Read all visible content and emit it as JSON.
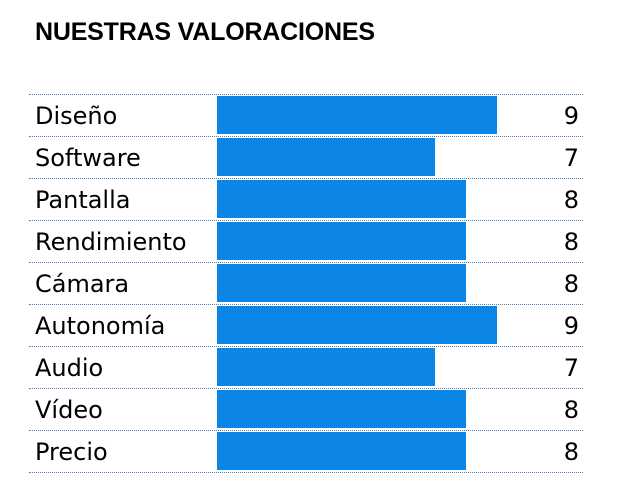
{
  "title": "NUESTRAS VALORACIONES",
  "bar_color": "#0c86e6",
  "scale_max": 10,
  "ratings": [
    {
      "label": "Diseño",
      "value": 9
    },
    {
      "label": "Software",
      "value": 7
    },
    {
      "label": "Pantalla",
      "value": 8
    },
    {
      "label": "Rendimiento",
      "value": 8
    },
    {
      "label": "Cámara",
      "value": 8
    },
    {
      "label": "Autonomía",
      "value": 9
    },
    {
      "label": "Audio",
      "value": 7
    },
    {
      "label": "Vídeo",
      "value": 8
    },
    {
      "label": "Precio",
      "value": 8
    }
  ]
}
